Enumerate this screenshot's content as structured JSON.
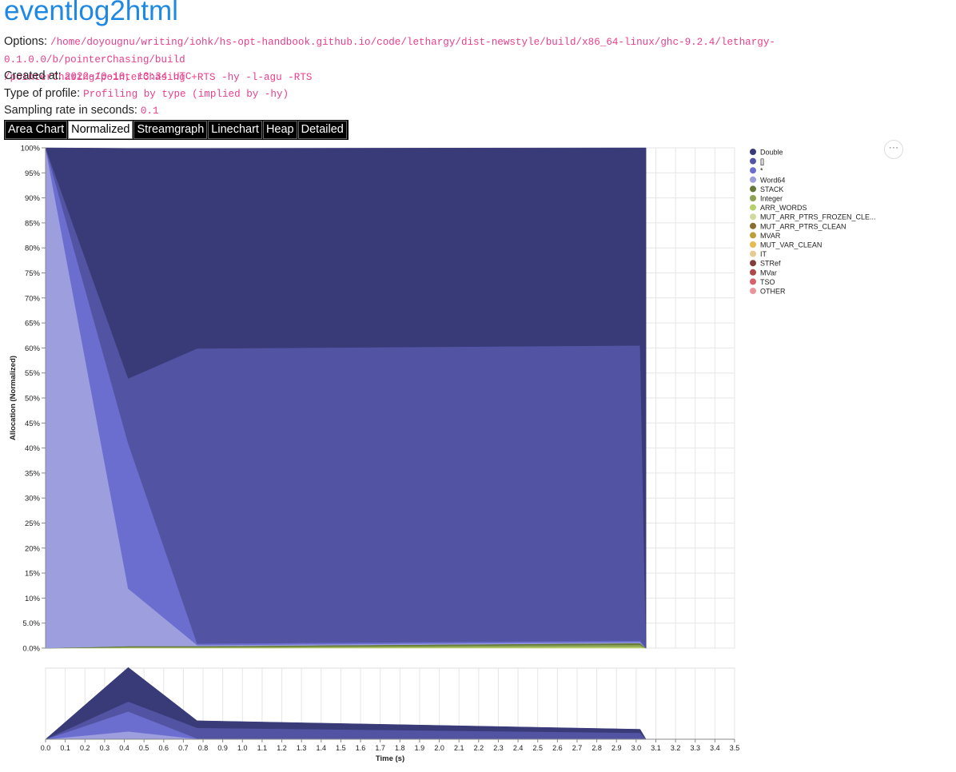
{
  "header": {
    "title": "eventlog2html",
    "options_label": "Options:",
    "options_value_1": "/home/doyougnu/writing/iohk/hs-opt-handbook.github.io/code/lethargy/dist-newstyle/build/x86_64-linux/ghc-9.2.4/lethargy-0.1.0.0/b/pointerChasing/build",
    "options_value_2": "/pointerChasing/pointerChasing +RTS -hy -l-agu -RTS",
    "created_label": "Created at:",
    "created_value": "2022-10-10, 13:34 UTC",
    "type_label": "Type of profile:",
    "type_value": "Profiling by type (implied by -hy)",
    "rate_label": "Sampling rate in seconds:",
    "rate_value": "0.1"
  },
  "tabs": [
    {
      "label": "Area Chart",
      "active": false
    },
    {
      "label": "Normalized",
      "active": true
    },
    {
      "label": "Streamgraph",
      "active": false
    },
    {
      "label": "Linechart",
      "active": false
    },
    {
      "label": "Heap",
      "active": false
    },
    {
      "label": "Detailed",
      "active": false
    }
  ],
  "menu_button": "⋯",
  "chart_data": {
    "type": "area",
    "stacking": "normalized",
    "ylabel": "Allocation (Normalized)",
    "xlabel": "Time (s)",
    "y_ticks": [
      "0.0%",
      "5.0%",
      "10%",
      "15%",
      "20%",
      "25%",
      "30%",
      "35%",
      "40%",
      "45%",
      "50%",
      "55%",
      "60%",
      "65%",
      "70%",
      "75%",
      "80%",
      "85%",
      "90%",
      "95%",
      "100%"
    ],
    "x_ticks": [
      "0.0",
      "0.1",
      "0.2",
      "0.3",
      "0.4",
      "0.5",
      "0.6",
      "0.7",
      "0.8",
      "0.9",
      "1.0",
      "1.1",
      "1.2",
      "1.3",
      "1.4",
      "1.5",
      "1.6",
      "1.7",
      "1.8",
      "1.9",
      "2.0",
      "2.1",
      "2.2",
      "2.3",
      "2.4",
      "2.5",
      "2.6",
      "2.7",
      "2.8",
      "2.9",
      "3.0",
      "3.1",
      "3.2",
      "3.3",
      "3.4",
      "3.5"
    ],
    "xlim": [
      0,
      3.5
    ],
    "ylim": [
      0,
      1
    ],
    "grid": true,
    "legend_position": "right",
    "x": [
      0.0,
      0.42,
      0.77,
      3.02,
      3.05
    ],
    "series": [
      {
        "name": "Double",
        "color": "#393b79",
        "values": [
          0,
          0.46,
          0.4,
          0.395,
          1.0
        ]
      },
      {
        "name": "[]",
        "color": "#5254a3",
        "values": [
          0,
          0.13,
          0.59,
          0.59,
          0
        ]
      },
      {
        "name": "*",
        "color": "#6b6ecf",
        "values": [
          0,
          0.29,
          0.003,
          0.003,
          0
        ]
      },
      {
        "name": "Word64",
        "color": "#9c9ede",
        "values": [
          1.0,
          0.115,
          0.002,
          0.002,
          0
        ]
      },
      {
        "name": "STACK",
        "color": "#637939",
        "values": [
          0,
          0.002,
          0.002,
          0.003,
          0
        ]
      },
      {
        "name": "Integer",
        "color": "#8ca252",
        "values": [
          0,
          0.001,
          0.001,
          0.004,
          0
        ]
      },
      {
        "name": "ARR_WORDS",
        "color": "#b5cf6b",
        "values": [
          0,
          0.001,
          0.001,
          0.003,
          0
        ]
      },
      {
        "name": "MUT_ARR_PTRS_FROZEN_CLE...",
        "color": "#cedb9c",
        "values": [
          0,
          0,
          0,
          0,
          0
        ]
      },
      {
        "name": "MUT_ARR_PTRS_CLEAN",
        "color": "#8c6d31",
        "values": [
          0,
          0,
          0,
          0,
          0
        ]
      },
      {
        "name": "MVAR",
        "color": "#bd9e39",
        "values": [
          0,
          0,
          0,
          0,
          0
        ]
      },
      {
        "name": "MUT_VAR_CLEAN",
        "color": "#e7ba52",
        "values": [
          0,
          0,
          0,
          0,
          0
        ]
      },
      {
        "name": "IT",
        "color": "#e7cb94",
        "values": [
          0,
          0,
          0,
          0,
          0
        ]
      },
      {
        "name": "STRef",
        "color": "#843c39",
        "values": [
          0,
          0,
          0,
          0,
          0
        ]
      },
      {
        "name": "MVar",
        "color": "#ad494a",
        "values": [
          0,
          0,
          0,
          0,
          0
        ]
      },
      {
        "name": "TSO",
        "color": "#d6616b",
        "values": [
          0,
          0,
          0,
          0,
          0
        ]
      },
      {
        "name": "OTHER",
        "color": "#e7969c",
        "values": [
          0,
          0,
          0,
          0,
          0
        ]
      }
    ],
    "overview": {
      "type": "area",
      "x": [
        0.0,
        0.42,
        0.77,
        3.02,
        3.05
      ],
      "series": [
        {
          "name": "Double",
          "color": "#393b79",
          "values": [
            0,
            0.48,
            0.1,
            0.05,
            0
          ]
        },
        {
          "name": "[]",
          "color": "#5254a3",
          "values": [
            0,
            0.14,
            0.15,
            0.08,
            0
          ]
        },
        {
          "name": "*",
          "color": "#6b6ecf",
          "values": [
            0,
            0.28,
            0.005,
            0.005,
            0
          ]
        },
        {
          "name": "Word64",
          "color": "#9c9ede",
          "values": [
            0,
            0.11,
            0.005,
            0.005,
            0
          ]
        }
      ]
    }
  }
}
